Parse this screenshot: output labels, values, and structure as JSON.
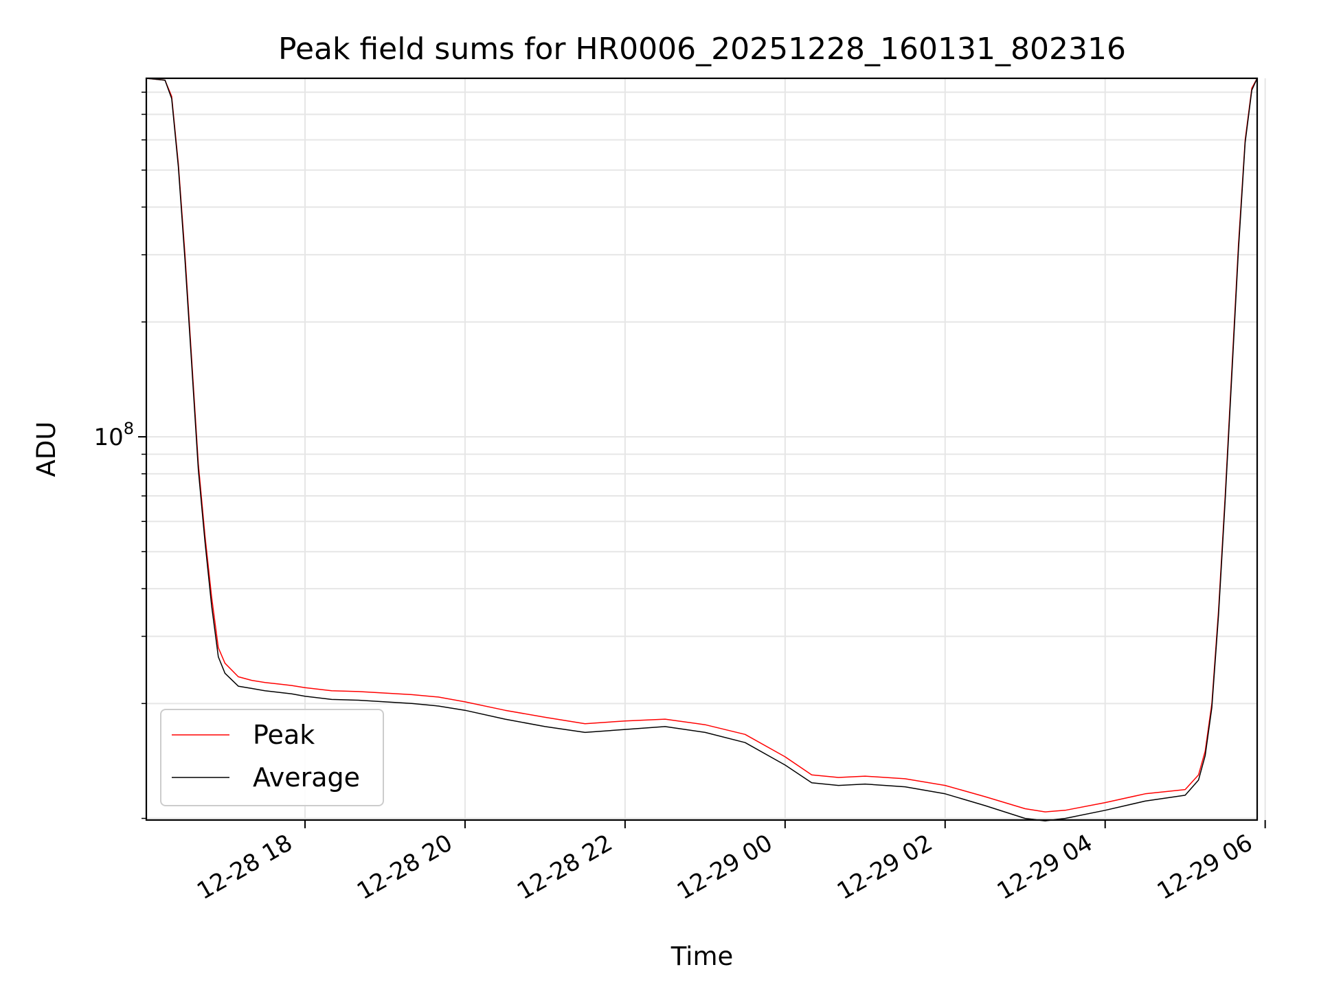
{
  "chart_data": {
    "type": "line",
    "title": "Peak field sums for HR0006_20251228_160131_802316",
    "xlabel": "Time",
    "ylabel": "ADU",
    "x_scale": "time",
    "y_scale": "log",
    "xlim": [
      "2025-12-28 16:01",
      "2025-12-29 05:54"
    ],
    "ylim": [
      9900000,
      870000000
    ],
    "x_tick_labels": [
      "12-28 18",
      "12-28 20",
      "12-28 22",
      "12-29 00",
      "12-29 02",
      "12-29 04",
      "12-29 06"
    ],
    "x_tick_values": [
      "2025-12-28 18:00",
      "2025-12-28 20:00",
      "2025-12-28 22:00",
      "2025-12-29 00:00",
      "2025-12-29 02:00",
      "2025-12-29 04:00",
      "2025-12-29 06:00"
    ],
    "y_tick_label_base": "10",
    "y_tick_label_exp": "8",
    "y_tick_value": 100000000,
    "grid": true,
    "legend_position": "lower-left",
    "series": [
      {
        "name": "Peak",
        "color": "#ff0000",
        "x": [
          "2025-12-28 16:01",
          "2025-12-28 16:15",
          "2025-12-28 16:20",
          "2025-12-28 16:25",
          "2025-12-28 16:30",
          "2025-12-28 16:35",
          "2025-12-28 16:40",
          "2025-12-28 16:45",
          "2025-12-28 16:50",
          "2025-12-28 16:55",
          "2025-12-28 17:00",
          "2025-12-28 17:10",
          "2025-12-28 17:20",
          "2025-12-28 17:30",
          "2025-12-28 17:40",
          "2025-12-28 17:50",
          "2025-12-28 18:00",
          "2025-12-28 18:20",
          "2025-12-28 18:40",
          "2025-12-28 19:00",
          "2025-12-28 19:20",
          "2025-12-28 19:40",
          "2025-12-28 20:00",
          "2025-12-28 20:30",
          "2025-12-28 21:00",
          "2025-12-28 21:30",
          "2025-12-28 22:00",
          "2025-12-28 22:30",
          "2025-12-28 23:00",
          "2025-12-28 23:30",
          "2025-12-29 00:00",
          "2025-12-29 00:20",
          "2025-12-29 00:40",
          "2025-12-29 01:00",
          "2025-12-29 01:30",
          "2025-12-29 02:00",
          "2025-12-29 02:30",
          "2025-12-29 03:00",
          "2025-12-29 03:15",
          "2025-12-29 03:30",
          "2025-12-29 04:00",
          "2025-12-29 04:30",
          "2025-12-29 05:00",
          "2025-12-29 05:10",
          "2025-12-29 05:15",
          "2025-12-29 05:20",
          "2025-12-29 05:25",
          "2025-12-29 05:30",
          "2025-12-29 05:35",
          "2025-12-29 05:40",
          "2025-12-29 05:45",
          "2025-12-29 05:50",
          "2025-12-29 05:54"
        ],
        "values": [
          870000000,
          860000000,
          780000000,
          520000000,
          300000000,
          160000000,
          85000000,
          55000000,
          38000000,
          28000000,
          25500000,
          23500000,
          23000000,
          22700000,
          22500000,
          22300000,
          22000000,
          21600000,
          21500000,
          21300000,
          21100000,
          20800000,
          20200000,
          19200000,
          18400000,
          17700000,
          18000000,
          18200000,
          17600000,
          16600000,
          14500000,
          13000000,
          12800000,
          12900000,
          12700000,
          12200000,
          11400000,
          10600000,
          10400000,
          10500000,
          11000000,
          11600000,
          11900000,
          13000000,
          15000000,
          20000000,
          35000000,
          70000000,
          150000000,
          320000000,
          600000000,
          820000000,
          870000000
        ]
      },
      {
        "name": "Average",
        "color": "#000000",
        "x": [
          "2025-12-28 16:01",
          "2025-12-28 16:15",
          "2025-12-28 16:20",
          "2025-12-28 16:25",
          "2025-12-28 16:30",
          "2025-12-28 16:35",
          "2025-12-28 16:40",
          "2025-12-28 16:45",
          "2025-12-28 16:50",
          "2025-12-28 16:55",
          "2025-12-28 17:00",
          "2025-12-28 17:10",
          "2025-12-28 17:20",
          "2025-12-28 17:30",
          "2025-12-28 17:40",
          "2025-12-28 17:50",
          "2025-12-28 18:00",
          "2025-12-28 18:20",
          "2025-12-28 18:40",
          "2025-12-28 19:00",
          "2025-12-28 19:20",
          "2025-12-28 19:40",
          "2025-12-28 20:00",
          "2025-12-28 20:30",
          "2025-12-28 21:00",
          "2025-12-28 21:30",
          "2025-12-28 22:00",
          "2025-12-28 22:30",
          "2025-12-28 23:00",
          "2025-12-28 23:30",
          "2025-12-29 00:00",
          "2025-12-29 00:20",
          "2025-12-29 00:40",
          "2025-12-29 01:00",
          "2025-12-29 01:30",
          "2025-12-29 02:00",
          "2025-12-29 02:30",
          "2025-12-29 03:00",
          "2025-12-29 03:15",
          "2025-12-29 03:30",
          "2025-12-29 04:00",
          "2025-12-29 04:30",
          "2025-12-29 05:00",
          "2025-12-29 05:10",
          "2025-12-29 05:15",
          "2025-12-29 05:20",
          "2025-12-29 05:25",
          "2025-12-29 05:30",
          "2025-12-29 05:35",
          "2025-12-29 05:40",
          "2025-12-29 05:45",
          "2025-12-29 05:50",
          "2025-12-29 05:54"
        ],
        "values": [
          870000000,
          860000000,
          770000000,
          510000000,
          290000000,
          155000000,
          82000000,
          53000000,
          36000000,
          26500000,
          24000000,
          22200000,
          21900000,
          21600000,
          21400000,
          21200000,
          20900000,
          20500000,
          20400000,
          20200000,
          20000000,
          19700000,
          19200000,
          18200000,
          17400000,
          16800000,
          17100000,
          17400000,
          16800000,
          15800000,
          13800000,
          12400000,
          12200000,
          12300000,
          12100000,
          11600000,
          10800000,
          10000000,
          9850000,
          10000000,
          10500000,
          11100000,
          11500000,
          12600000,
          14600000,
          19500000,
          34000000,
          68000000,
          145000000,
          310000000,
          590000000,
          810000000,
          870000000
        ]
      }
    ]
  }
}
